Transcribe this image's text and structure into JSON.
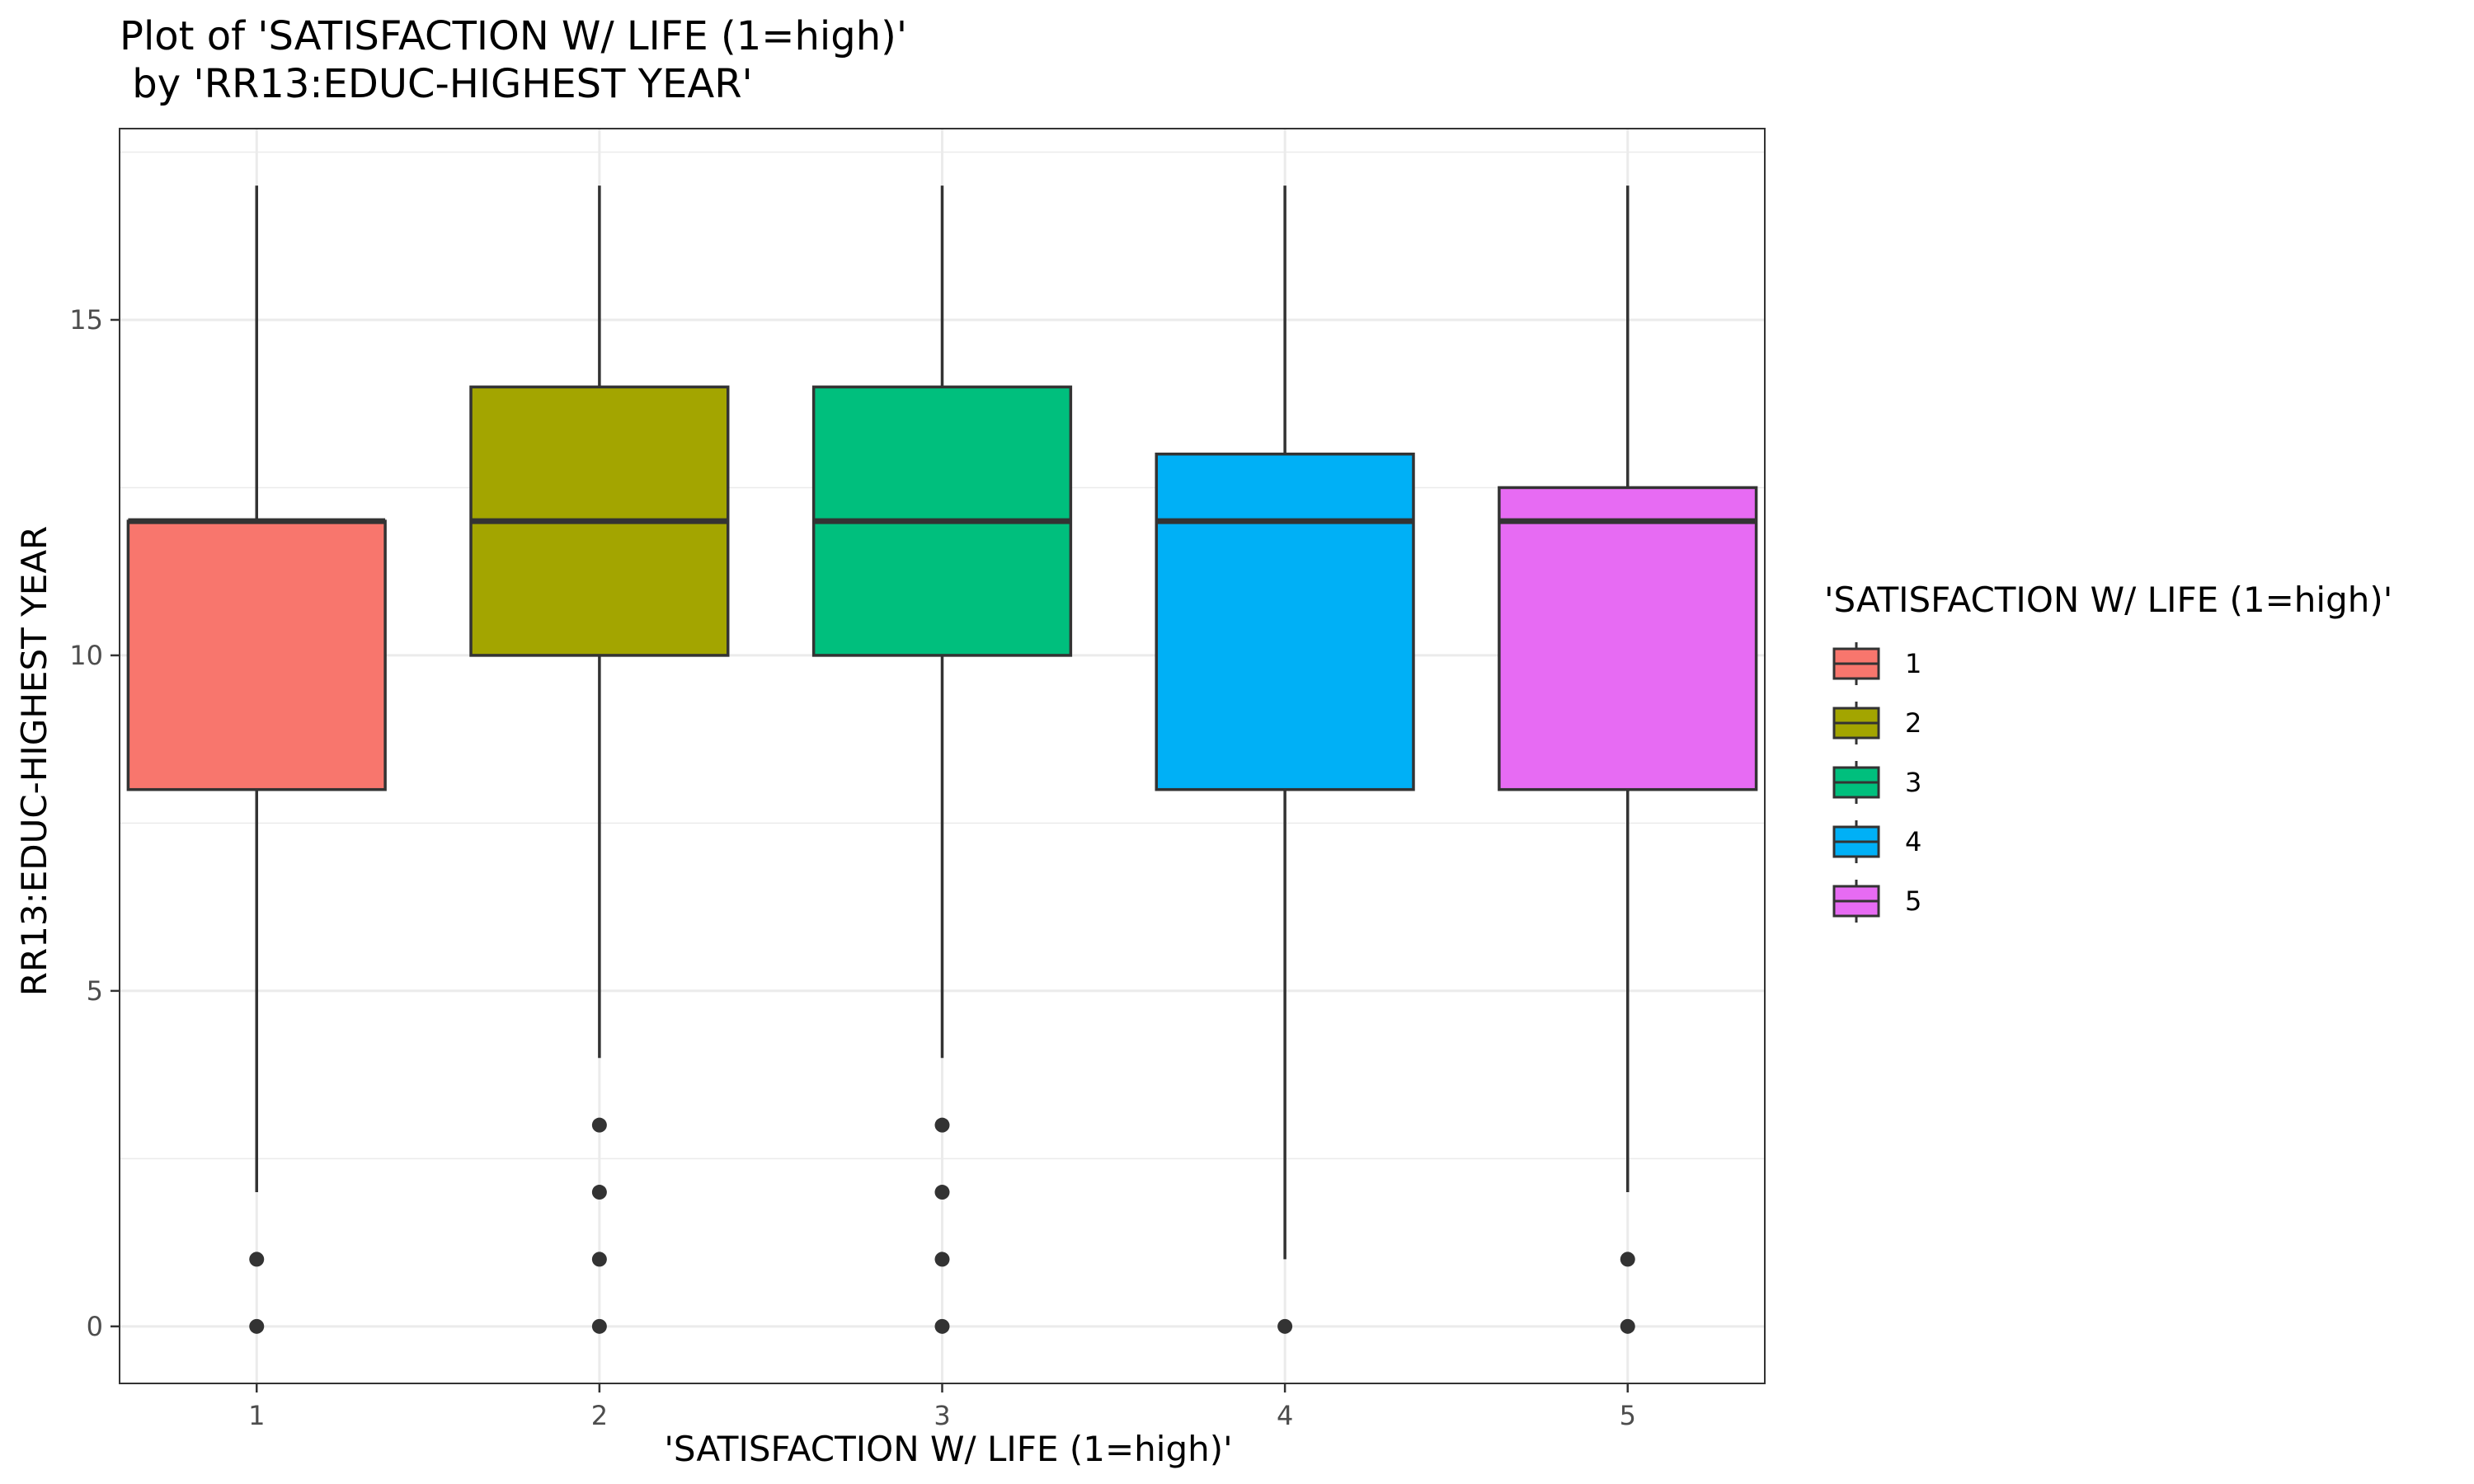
{
  "chart_data": {
    "type": "boxplot",
    "title_line1": "Plot of 'SATISFACTION W/ LIFE (1=high)'",
    "title_line2": " by 'RR13:EDUC-HIGHEST YEAR'",
    "xlabel": "'SATISFACTION W/ LIFE (1=high)'",
    "ylabel": "RR13:EDUC-HIGHEST YEAR",
    "categories": [
      "1",
      "2",
      "3",
      "4",
      "5"
    ],
    "ylim": [
      -0.85,
      17.85
    ],
    "yticks": [
      0,
      5,
      10,
      15
    ],
    "ytick_labels": [
      "0",
      "5",
      "10",
      "15"
    ],
    "grid": true,
    "legend": {
      "title": "'SATISFACTION W/ LIFE (1=high)'",
      "position": "right",
      "labels": [
        "1",
        "2",
        "3",
        "4",
        "5"
      ]
    },
    "series": [
      {
        "category": "1",
        "color": "#F8766D",
        "whisker_low": 2,
        "q1": 8,
        "median": 12,
        "q3": 12,
        "whisker_high": 17,
        "outliers": [
          0,
          1
        ]
      },
      {
        "category": "2",
        "color": "#A3A500",
        "whisker_low": 4,
        "q1": 10,
        "median": 12,
        "q3": 14,
        "whisker_high": 17,
        "outliers": [
          0,
          1,
          2,
          3
        ]
      },
      {
        "category": "3",
        "color": "#00BF7D",
        "whisker_low": 4,
        "q1": 10,
        "median": 12,
        "q3": 14,
        "whisker_high": 17,
        "outliers": [
          0,
          1,
          2,
          3
        ]
      },
      {
        "category": "4",
        "color": "#00B0F6",
        "whisker_low": 1,
        "q1": 8,
        "median": 12,
        "q3": 13,
        "whisker_high": 17,
        "outliers": [
          0
        ]
      },
      {
        "category": "5",
        "color": "#E76BF3",
        "whisker_low": 2,
        "q1": 8,
        "median": 12,
        "q3": 12.5,
        "whisker_high": 17,
        "outliers": [
          0,
          1
        ]
      }
    ]
  }
}
